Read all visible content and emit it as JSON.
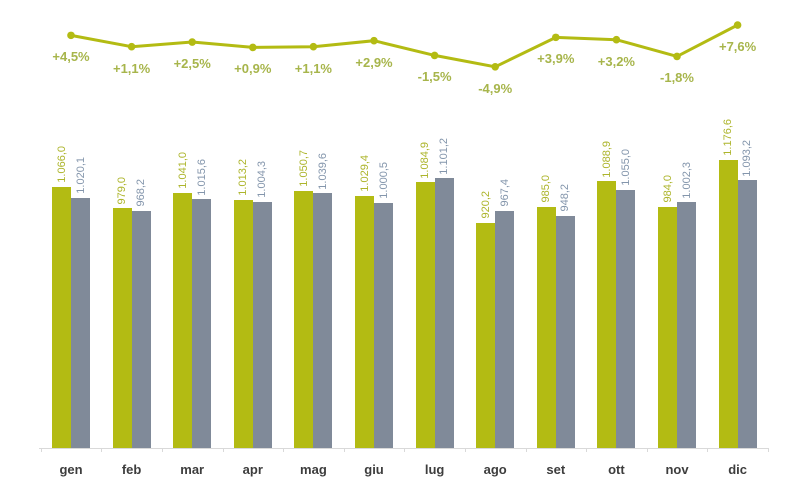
{
  "chart_data": {
    "type": "combo",
    "title": "",
    "categories": [
      "gen",
      "feb",
      "mar",
      "apr",
      "mag",
      "giu",
      "lug",
      "ago",
      "set",
      "ott",
      "nov",
      "dic"
    ],
    "series": [
      {
        "name": "current-year-bars",
        "type": "bar",
        "color": "#b3bb13",
        "label_color": "#adb52c",
        "values": [
          1066.0,
          979.0,
          1041.0,
          1013.2,
          1050.7,
          1029.4,
          1084.9,
          920.2,
          985.0,
          1088.9,
          984.0,
          1176.6
        ],
        "labels": [
          "1.066,0",
          "979,0",
          "1.041,0",
          "1.013,2",
          "1.050,7",
          "1.029,4",
          "1.084,9",
          "920,2",
          "985,0",
          "1.088,9",
          "984,0",
          "1.176,6"
        ]
      },
      {
        "name": "previous-year-bars",
        "type": "bar",
        "color": "#808a99",
        "label_color": "#8496ac",
        "values": [
          1020.1,
          968.2,
          1015.6,
          1004.3,
          1039.6,
          1000.5,
          1101.2,
          967.4,
          948.2,
          1055.0,
          1002.3,
          1093.2
        ],
        "labels": [
          "1.020,1",
          "968,2",
          "1.015,6",
          "1.004,3",
          "1.039,6",
          "1.000,5",
          "1.101,2",
          "967,4",
          "948,2",
          "1.055,0",
          "1.002,3",
          "1.093,2"
        ]
      },
      {
        "name": "pct-change-line",
        "type": "line",
        "color": "#b3bb13",
        "label_color": "#a7b54b",
        "values": [
          4.5,
          1.1,
          2.5,
          0.9,
          1.1,
          2.9,
          -1.5,
          -4.9,
          3.9,
          3.2,
          -1.8,
          7.6
        ],
        "labels": [
          "+4,5%",
          "+1,1%",
          "+2,5%",
          "+0,9%",
          "+1,1%",
          "+2,9%",
          "-1,5%",
          "-4,9%",
          "+3,9%",
          "+3,2%",
          "-1,8%",
          "+7,6%"
        ]
      }
    ],
    "bar_axis": {
      "min": 0,
      "max": 1400,
      "visible": false
    },
    "line_axis": {
      "visible": false
    },
    "grid": false,
    "legend": false,
    "x_axis": {
      "line_color": "#d9d9d9",
      "tick_color": "#d9d9d9",
      "label_color": "#3d3d3d"
    }
  }
}
